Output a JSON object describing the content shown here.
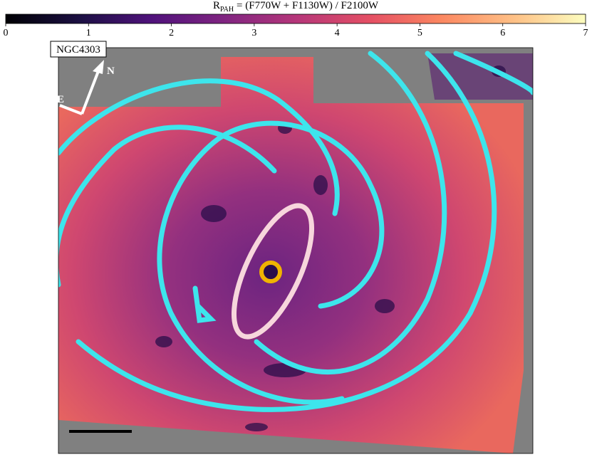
{
  "chart_data": {
    "type": "image",
    "title_symbol": "R",
    "title_subscript": "PAH",
    "title_expression": "= (F770W + F1130W) / F2100W",
    "clim": [
      0,
      7
    ],
    "cticks": [
      0,
      1,
      2,
      3,
      4,
      5,
      6,
      7
    ],
    "colormap": "magma",
    "annotations": [
      "NGC4303",
      "N",
      "E"
    ]
  }
}
